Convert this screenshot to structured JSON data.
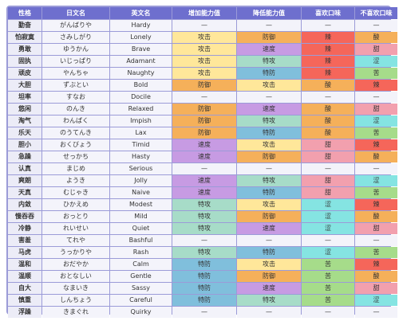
{
  "headers": [
    "性格",
    "日文名",
    "英文名",
    "增加能力值",
    "降低能力值",
    "喜欢口味",
    "不喜欢口味"
  ],
  "rows": [
    [
      "勤奋",
      "がんばりや",
      "Hardy",
      "—",
      "—",
      "—",
      "—"
    ],
    [
      "怕寂寞",
      "さみしがり",
      "Lonely",
      "攻击",
      "防御",
      "辣",
      "酸"
    ],
    [
      "勇敢",
      "ゆうかん",
      "Brave",
      "攻击",
      "速度",
      "辣",
      "甜"
    ],
    [
      "固执",
      "いじっぱり",
      "Adamant",
      "攻击",
      "特攻",
      "辣",
      "涩"
    ],
    [
      "顽皮",
      "やんちゃ",
      "Naughty",
      "攻击",
      "特防",
      "辣",
      "苦"
    ],
    [
      "大胆",
      "ずぶとい",
      "Bold",
      "防御",
      "攻击",
      "酸",
      "辣"
    ],
    [
      "坦率",
      "すなお",
      "Docile",
      "—",
      "—",
      "—",
      "—"
    ],
    [
      "悠闲",
      "のんき",
      "Relaxed",
      "防御",
      "速度",
      "酸",
      "甜"
    ],
    [
      "淘气",
      "わんぱく",
      "Impish",
      "防御",
      "特攻",
      "酸",
      "涩"
    ],
    [
      "乐天",
      "のうてんき",
      "Lax",
      "防御",
      "特防",
      "酸",
      "苦"
    ],
    [
      "胆小",
      "おくびょう",
      "Timid",
      "速度",
      "攻击",
      "甜",
      "辣"
    ],
    [
      "急躁",
      "せっかち",
      "Hasty",
      "速度",
      "防御",
      "甜",
      "酸"
    ],
    [
      "认真",
      "まじめ",
      "Serious",
      "—",
      "—",
      "—",
      "—"
    ],
    [
      "爽朗",
      "ようき",
      "Jolly",
      "速度",
      "特攻",
      "甜",
      "涩"
    ],
    [
      "天真",
      "むじゃき",
      "Naive",
      "速度",
      "特防",
      "甜",
      "苦"
    ],
    [
      "内敛",
      "ひかえめ",
      "Modest",
      "特攻",
      "攻击",
      "涩",
      "辣"
    ],
    [
      "慢吞吞",
      "おっとり",
      "Mild",
      "特攻",
      "防御",
      "涩",
      "酸"
    ],
    [
      "冷静",
      "れいせい",
      "Quiet",
      "特攻",
      "速度",
      "涩",
      "甜"
    ],
    [
      "害羞",
      "てれや",
      "Bashful",
      "—",
      "—",
      "—",
      "—"
    ],
    [
      "马虎",
      "うっかりや",
      "Rash",
      "特攻",
      "特防",
      "涩",
      "苦"
    ],
    [
      "温和",
      "おだやか",
      "Calm",
      "特防",
      "攻击",
      "苦",
      "辣"
    ],
    [
      "温顺",
      "おとなしい",
      "Gentle",
      "特防",
      "防御",
      "苦",
      "酸"
    ],
    [
      "自大",
      "なまいき",
      "Sassy",
      "特防",
      "速度",
      "苦",
      "甜"
    ],
    [
      "慎重",
      "しんちょう",
      "Careful",
      "特防",
      "特攻",
      "苦",
      "涩"
    ],
    [
      "浮躁",
      "きまぐれ",
      "Quirky",
      "—",
      "—",
      "—",
      "—"
    ]
  ],
  "colors": {
    "header_bg": "#6e6fce",
    "攻击": "#ffe79a",
    "防御": "#f5b05a",
    "速度": "#c79be3",
    "特攻": "#a7dcc8",
    "特防": "#80bfdc",
    "辣": "#f5665a",
    "酸": "#f5b05a",
    "甜": "#f2a0ae",
    "涩": "#85e4e2",
    "苦": "#a6dc8a"
  }
}
